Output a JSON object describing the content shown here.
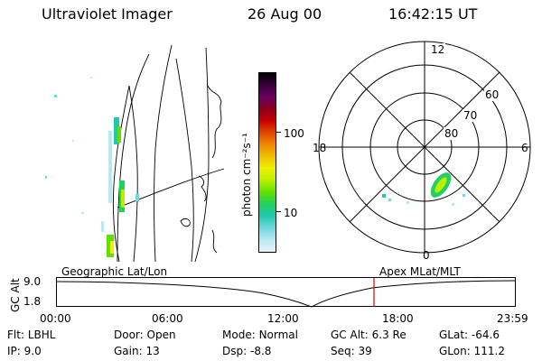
{
  "header": {
    "instrument": "Ultraviolet Imager",
    "date": "26 Aug 00",
    "time": "16:42:15 UT"
  },
  "colorbar": {
    "label": "photon cm⁻²s⁻¹",
    "ticks": [
      "100",
      "10"
    ],
    "colors": [
      "#000000",
      "#3a003a",
      "#6a0060",
      "#8a0020",
      "#c80000",
      "#e04800",
      "#f08800",
      "#f0c000",
      "#f0f000",
      "#b8f000",
      "#60e000",
      "#20d060",
      "#20c8b0",
      "#70d8e0",
      "#b8e8f0",
      "#e8f4f8"
    ]
  },
  "polar": {
    "labels": {
      "top": "12",
      "bottom": "0",
      "left": "18",
      "right": "6"
    },
    "rings": [
      "60",
      "70",
      "80"
    ]
  },
  "track": {
    "left_title": "Geographic Lat/Lon",
    "right_title": "Apex MLat/MLT",
    "yaxis_label": "GC Alt",
    "y_ticks": [
      "9.0",
      "1.8"
    ],
    "x_ticks": [
      "00:00",
      "06:00",
      "12:00",
      "18:00",
      "23:59"
    ],
    "marker_color": "#e00000"
  },
  "footer": {
    "row1": [
      {
        "label": "Flt:",
        "value": "LBHL"
      },
      {
        "label": "Door:",
        "value": "Open"
      },
      {
        "label": "Mode:",
        "value": "Normal"
      },
      {
        "label": "GC Alt:",
        "value": "6.3 Re"
      },
      {
        "label": "GLat:",
        "value": "-64.6"
      }
    ],
    "row2": [
      {
        "label": "IP:",
        "value": "9.0"
      },
      {
        "label": "Gain:",
        "value": "13"
      },
      {
        "label": "Dsp:",
        "value": "-8.8"
      },
      {
        "label": "Seq:",
        "value": "39"
      },
      {
        "label": "GLon:",
        "value": "111.2"
      }
    ]
  }
}
